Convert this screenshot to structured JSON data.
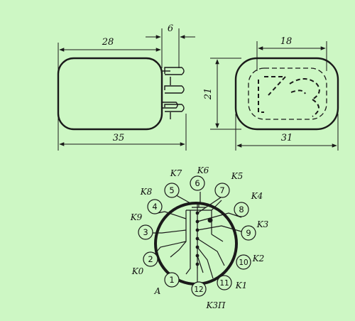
{
  "dimensions": {
    "side_length_inner": "28",
    "side_pin_length": "6",
    "side_length_total": "35",
    "height": "21",
    "front_digit_width": "18",
    "front_width": "31"
  },
  "digit_shown": "3",
  "pins": [
    {
      "number": "1",
      "label": "A"
    },
    {
      "number": "2",
      "label": "K0"
    },
    {
      "number": "3",
      "label": "K9"
    },
    {
      "number": "4",
      "label": "K8"
    },
    {
      "number": "5",
      "label": "K7"
    },
    {
      "number": "6",
      "label": "K6"
    },
    {
      "number": "7",
      "label": "K5"
    },
    {
      "number": "8",
      "label": "K4"
    },
    {
      "number": "9",
      "label": "K3"
    },
    {
      "number": "10",
      "label": "K2"
    },
    {
      "number": "11",
      "label": "K1"
    },
    {
      "number": "12",
      "label": "K3П"
    }
  ],
  "colors": {
    "background": "#cdf7c4",
    "ink": "#1a1a1a"
  }
}
